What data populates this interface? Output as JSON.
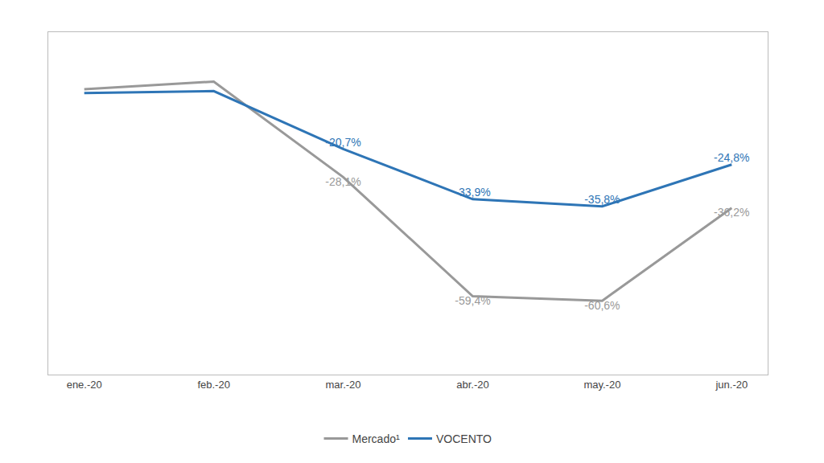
{
  "chart_data": {
    "type": "line",
    "categories": [
      "ene.-20",
      "feb.-20",
      "mar.-20",
      "abr.-20",
      "may.-20",
      "jun.-20"
    ],
    "series": [
      {
        "name": "Mercado¹",
        "color": "#999999",
        "line_style": "solid",
        "values": [
          -5.0,
          -3.0,
          -28.1,
          -59.4,
          -60.6,
          -36.2
        ],
        "value_labels": [
          null,
          null,
          "-28,1%",
          "-59,4%",
          "-60,6%",
          "-36,2%"
        ]
      },
      {
        "name": "VOCENTO",
        "color": "#2e75b6",
        "line_style": "solid",
        "values": [
          -6.0,
          -5.5,
          -20.7,
          -33.9,
          -35.8,
          -24.8
        ],
        "value_labels": [
          null,
          null,
          "-20,7%",
          "-33,9%",
          "-35,8%",
          "-24,8%"
        ]
      }
    ],
    "ylim": [
      -80,
      10
    ],
    "data_labels": true,
    "tick_labels": "x",
    "grid": false,
    "legend": "bottom"
  }
}
